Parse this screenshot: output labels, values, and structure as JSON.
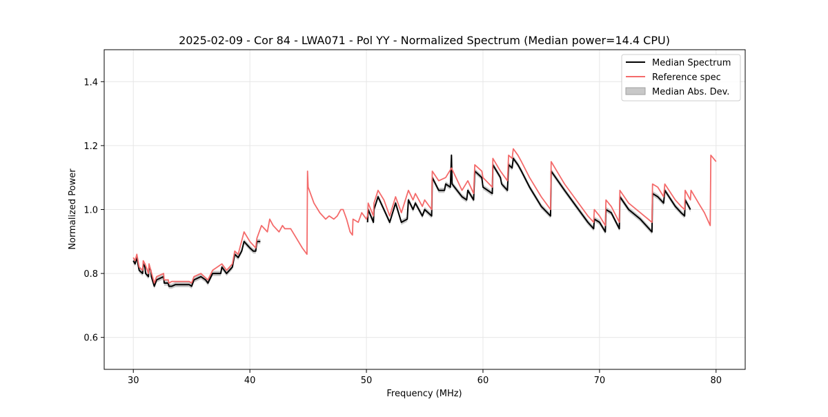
{
  "chart_data": {
    "type": "line",
    "title": "2025-02-09 - Cor 84 - LWA071 - Pol YY - Normalized Spectrum (Median power=14.4 CPU)",
    "xlabel": "Frequency (MHz)",
    "ylabel": "Normalized Power",
    "xlim": [
      27.5,
      82.5
    ],
    "ylim": [
      0.5,
      1.5
    ],
    "xticks": [
      30,
      40,
      50,
      60,
      70,
      80
    ],
    "yticks": [
      0.6,
      0.8,
      1.0,
      1.2,
      1.4
    ],
    "xtick_labels": [
      "30",
      "40",
      "50",
      "60",
      "70",
      "80"
    ],
    "ytick_labels": [
      "0.6",
      "0.8",
      "1.0",
      "1.2",
      "1.4"
    ],
    "grid": true,
    "legend_position": "top-right",
    "series": [
      {
        "name": "Median Spectrum",
        "color": "#000000",
        "segments": [
          [
            [
              30.0,
              0.84
            ],
            [
              30.15,
              0.83
            ],
            [
              30.3,
              0.85
            ],
            [
              30.45,
              0.82
            ],
            [
              30.5,
              0.81
            ],
            [
              30.8,
              0.8
            ],
            [
              30.85,
              0.83
            ],
            [
              31.0,
              0.82
            ],
            [
              31.05,
              0.8
            ],
            [
              31.3,
              0.79
            ],
            [
              31.35,
              0.82
            ],
            [
              31.5,
              0.81
            ],
            [
              31.55,
              0.79
            ],
            [
              31.8,
              0.76
            ],
            [
              32.0,
              0.78
            ],
            [
              32.6,
              0.79
            ],
            [
              32.65,
              0.77
            ],
            [
              33.0,
              0.77
            ],
            [
              33.05,
              0.76
            ],
            [
              33.3,
              0.76
            ],
            [
              33.6,
              0.765
            ],
            [
              34.0,
              0.765
            ],
            [
              34.8,
              0.765
            ],
            [
              35.0,
              0.76
            ],
            [
              35.2,
              0.78
            ],
            [
              35.8,
              0.79
            ],
            [
              36.2,
              0.78
            ],
            [
              36.4,
              0.77
            ],
            [
              36.8,
              0.8
            ],
            [
              37.0,
              0.8
            ],
            [
              37.5,
              0.8
            ],
            [
              37.6,
              0.82
            ],
            [
              38.0,
              0.8
            ],
            [
              38.5,
              0.82
            ],
            [
              38.7,
              0.86
            ],
            [
              39.0,
              0.85
            ],
            [
              39.3,
              0.87
            ],
            [
              39.5,
              0.9
            ],
            [
              40.0,
              0.88
            ],
            [
              40.3,
              0.87
            ],
            [
              40.5,
              0.87
            ],
            [
              40.6,
              0.9
            ],
            [
              40.9,
              0.9
            ]
          ],
          [
            [
              50.1,
              0.96
            ],
            [
              50.15,
              1.0
            ],
            [
              50.6,
              0.96
            ],
            [
              50.65,
              1.0
            ],
            [
              51.0,
              1.04
            ],
            [
              51.5,
              1.0
            ],
            [
              52.0,
              0.96
            ],
            [
              52.5,
              1.02
            ],
            [
              53.0,
              0.96
            ],
            [
              53.5,
              0.97
            ],
            [
              53.6,
              1.03
            ],
            [
              54.0,
              1.0
            ],
            [
              54.2,
              1.02
            ],
            [
              54.8,
              0.98
            ],
            [
              55.0,
              1.0
            ],
            [
              55.6,
              0.98
            ],
            [
              55.65,
              1.1
            ],
            [
              56.2,
              1.06
            ],
            [
              56.7,
              1.06
            ],
            [
              56.8,
              1.08
            ],
            [
              57.2,
              1.07
            ],
            [
              57.3,
              1.17
            ],
            [
              57.35,
              1.08
            ],
            [
              58.2,
              1.04
            ],
            [
              58.6,
              1.03
            ],
            [
              58.7,
              1.06
            ],
            [
              59.2,
              1.03
            ],
            [
              59.3,
              1.12
            ],
            [
              59.9,
              1.1
            ],
            [
              60.0,
              1.07
            ],
            [
              60.8,
              1.05
            ],
            [
              60.85,
              1.14
            ],
            [
              61.5,
              1.1
            ],
            [
              61.6,
              1.08
            ],
            [
              62.1,
              1.06
            ],
            [
              62.2,
              1.14
            ],
            [
              62.5,
              1.13
            ],
            [
              62.6,
              1.16
            ],
            [
              63.0,
              1.14
            ],
            [
              63.3,
              1.12
            ],
            [
              64.0,
              1.07
            ],
            [
              65.0,
              1.01
            ],
            [
              65.8,
              0.98
            ],
            [
              65.85,
              1.12
            ],
            [
              67.0,
              1.06
            ],
            [
              68.0,
              1.01
            ],
            [
              69.0,
              0.96
            ],
            [
              69.5,
              0.94
            ],
            [
              69.55,
              0.97
            ],
            [
              70.0,
              0.96
            ],
            [
              70.5,
              0.93
            ],
            [
              70.55,
              1.0
            ],
            [
              71.0,
              0.99
            ],
            [
              71.7,
              0.94
            ],
            [
              71.75,
              1.04
            ],
            [
              72.5,
              1.0
            ],
            [
              73.5,
              0.97
            ],
            [
              74.5,
              0.93
            ],
            [
              74.55,
              1.05
            ],
            [
              75.0,
              1.04
            ],
            [
              75.5,
              1.02
            ],
            [
              75.6,
              1.06
            ],
            [
              76.5,
              1.01
            ],
            [
              77.0,
              0.99
            ],
            [
              77.3,
              0.98
            ],
            [
              77.35,
              1.03
            ],
            [
              77.8,
              1.0
            ]
          ]
        ]
      },
      {
        "name": "Reference spec",
        "color": "#f46a6a",
        "segments": [
          [
            [
              30.0,
              0.85
            ],
            [
              30.15,
              0.84
            ],
            [
              30.3,
              0.86
            ],
            [
              30.5,
              0.82
            ],
            [
              30.8,
              0.81
            ],
            [
              30.85,
              0.84
            ],
            [
              31.0,
              0.83
            ],
            [
              31.3,
              0.8
            ],
            [
              31.35,
              0.83
            ],
            [
              31.8,
              0.77
            ],
            [
              32.0,
              0.79
            ],
            [
              32.6,
              0.8
            ],
            [
              32.65,
              0.78
            ],
            [
              33.0,
              0.78
            ],
            [
              33.05,
              0.77
            ],
            [
              33.3,
              0.775
            ],
            [
              34.0,
              0.775
            ],
            [
              34.8,
              0.775
            ],
            [
              35.0,
              0.77
            ],
            [
              35.2,
              0.79
            ],
            [
              35.8,
              0.8
            ],
            [
              36.4,
              0.78
            ],
            [
              36.8,
              0.81
            ],
            [
              37.6,
              0.83
            ],
            [
              38.0,
              0.81
            ],
            [
              38.5,
              0.83
            ],
            [
              38.7,
              0.87
            ],
            [
              39.0,
              0.86
            ],
            [
              39.5,
              0.93
            ],
            [
              40.0,
              0.9
            ],
            [
              40.5,
              0.88
            ],
            [
              40.6,
              0.91
            ],
            [
              41.0,
              0.95
            ],
            [
              41.5,
              0.93
            ],
            [
              41.7,
              0.97
            ],
            [
              42.0,
              0.95
            ],
            [
              42.5,
              0.93
            ],
            [
              42.8,
              0.95
            ],
            [
              43.0,
              0.94
            ],
            [
              43.5,
              0.94
            ],
            [
              44.0,
              0.91
            ],
            [
              44.5,
              0.88
            ],
            [
              44.9,
              0.86
            ],
            [
              44.95,
              1.12
            ],
            [
              45.0,
              1.07
            ],
            [
              45.5,
              1.02
            ],
            [
              46.0,
              0.99
            ],
            [
              46.5,
              0.97
            ],
            [
              46.8,
              0.98
            ],
            [
              47.2,
              0.97
            ],
            [
              47.5,
              0.98
            ],
            [
              47.8,
              1.0
            ],
            [
              48.0,
              1.0
            ],
            [
              48.3,
              0.97
            ],
            [
              48.6,
              0.93
            ],
            [
              48.8,
              0.92
            ],
            [
              48.85,
              0.97
            ],
            [
              49.3,
              0.96
            ],
            [
              49.6,
              0.99
            ],
            [
              49.8,
              0.98
            ],
            [
              50.0,
              0.97
            ],
            [
              50.1,
              0.98
            ],
            [
              50.15,
              1.02
            ],
            [
              50.6,
              0.98
            ],
            [
              50.65,
              1.02
            ],
            [
              51.0,
              1.06
            ],
            [
              51.5,
              1.03
            ],
            [
              52.0,
              0.98
            ],
            [
              52.5,
              1.04
            ],
            [
              53.0,
              0.99
            ],
            [
              53.6,
              1.06
            ],
            [
              54.0,
              1.03
            ],
            [
              54.2,
              1.05
            ],
            [
              54.8,
              1.01
            ],
            [
              55.0,
              1.03
            ],
            [
              55.6,
              1.0
            ],
            [
              55.65,
              1.12
            ],
            [
              56.2,
              1.09
            ],
            [
              56.8,
              1.1
            ],
            [
              57.3,
              1.13
            ],
            [
              58.2,
              1.06
            ],
            [
              58.7,
              1.09
            ],
            [
              59.2,
              1.05
            ],
            [
              59.3,
              1.14
            ],
            [
              59.9,
              1.12
            ],
            [
              60.0,
              1.1
            ],
            [
              60.8,
              1.07
            ],
            [
              60.85,
              1.16
            ],
            [
              61.5,
              1.12
            ],
            [
              62.1,
              1.09
            ],
            [
              62.2,
              1.17
            ],
            [
              62.5,
              1.16
            ],
            [
              62.6,
              1.19
            ],
            [
              63.0,
              1.17
            ],
            [
              63.3,
              1.15
            ],
            [
              64.0,
              1.1
            ],
            [
              65.0,
              1.04
            ],
            [
              65.8,
              1.0
            ],
            [
              65.85,
              1.15
            ],
            [
              67.0,
              1.08
            ],
            [
              68.0,
              1.03
            ],
            [
              69.0,
              0.98
            ],
            [
              69.5,
              0.96
            ],
            [
              69.55,
              1.0
            ],
            [
              70.0,
              0.98
            ],
            [
              70.5,
              0.95
            ],
            [
              70.55,
              1.03
            ],
            [
              71.0,
              1.01
            ],
            [
              71.7,
              0.96
            ],
            [
              71.75,
              1.06
            ],
            [
              72.5,
              1.02
            ],
            [
              73.5,
              0.99
            ],
            [
              74.5,
              0.96
            ],
            [
              74.55,
              1.08
            ],
            [
              75.0,
              1.07
            ],
            [
              75.5,
              1.04
            ],
            [
              75.6,
              1.08
            ],
            [
              76.5,
              1.03
            ],
            [
              77.0,
              1.01
            ],
            [
              77.3,
              1.0
            ],
            [
              77.35,
              1.06
            ],
            [
              77.8,
              1.03
            ],
            [
              77.85,
              1.06
            ],
            [
              78.5,
              1.02
            ],
            [
              79.0,
              0.99
            ],
            [
              79.5,
              0.95
            ],
            [
              79.55,
              1.17
            ],
            [
              80.0,
              1.15
            ]
          ]
        ]
      }
    ],
    "band": {
      "name": "Median Abs. Dev.",
      "color": "#b0b0b0",
      "spread": 0.008
    },
    "legend": [
      {
        "label": "Median Spectrum",
        "kind": "line",
        "color": "#000000"
      },
      {
        "label": "Reference spec",
        "kind": "line",
        "color": "#f46a6a"
      },
      {
        "label": "Median Abs. Dev.",
        "kind": "patch",
        "color": "#c8c8c8"
      }
    ]
  }
}
